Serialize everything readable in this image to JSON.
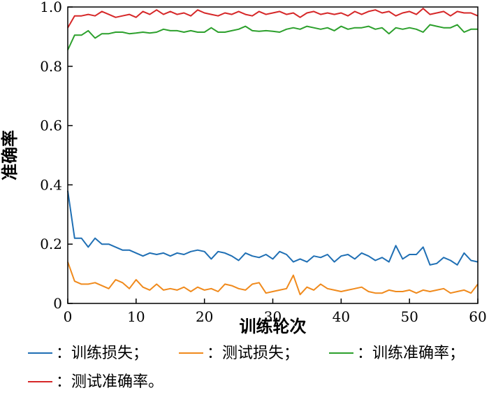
{
  "chart_data": {
    "type": "line",
    "xlabel": "训练轮次",
    "ylabel": "准确率",
    "xlim": [
      0,
      60
    ],
    "ylim": [
      0,
      1.0
    ],
    "xticks": [
      "0",
      "10",
      "20",
      "30",
      "40",
      "50",
      "60"
    ],
    "yticks": [
      "0",
      "0.2",
      "0.4",
      "0.6",
      "0.8",
      "1.0"
    ],
    "grid": false,
    "legend_position": "bottom",
    "x": [
      0,
      1,
      2,
      3,
      4,
      5,
      6,
      7,
      8,
      9,
      10,
      11,
      12,
      13,
      14,
      15,
      16,
      17,
      18,
      19,
      20,
      21,
      22,
      23,
      24,
      25,
      26,
      27,
      28,
      29,
      30,
      31,
      32,
      33,
      34,
      35,
      36,
      37,
      38,
      39,
      40,
      41,
      42,
      43,
      44,
      45,
      46,
      47,
      48,
      49,
      50,
      51,
      52,
      53,
      54,
      55,
      56,
      57,
      58,
      59,
      60
    ],
    "series": [
      {
        "name": "：训练损失；",
        "color": "#1f6fb4",
        "values": [
          0.38,
          0.22,
          0.22,
          0.19,
          0.22,
          0.2,
          0.2,
          0.19,
          0.18,
          0.18,
          0.17,
          0.16,
          0.17,
          0.165,
          0.17,
          0.16,
          0.17,
          0.165,
          0.175,
          0.18,
          0.175,
          0.15,
          0.175,
          0.17,
          0.16,
          0.145,
          0.17,
          0.16,
          0.155,
          0.165,
          0.15,
          0.175,
          0.165,
          0.14,
          0.15,
          0.14,
          0.16,
          0.155,
          0.165,
          0.14,
          0.16,
          0.165,
          0.15,
          0.17,
          0.16,
          0.145,
          0.155,
          0.14,
          0.195,
          0.15,
          0.165,
          0.165,
          0.19,
          0.13,
          0.135,
          0.155,
          0.145,
          0.13,
          0.17,
          0.145,
          0.14
        ]
      },
      {
        "name": "：测试损失；",
        "color": "#f08a1c",
        "values": [
          0.14,
          0.075,
          0.065,
          0.065,
          0.07,
          0.06,
          0.05,
          0.08,
          0.07,
          0.05,
          0.08,
          0.055,
          0.045,
          0.065,
          0.045,
          0.05,
          0.045,
          0.055,
          0.04,
          0.055,
          0.045,
          0.05,
          0.04,
          0.065,
          0.06,
          0.05,
          0.045,
          0.065,
          0.07,
          0.035,
          0.04,
          0.045,
          0.05,
          0.095,
          0.03,
          0.055,
          0.045,
          0.065,
          0.05,
          0.045,
          0.04,
          0.045,
          0.05,
          0.055,
          0.04,
          0.035,
          0.035,
          0.045,
          0.04,
          0.04,
          0.045,
          0.035,
          0.045,
          0.04,
          0.045,
          0.05,
          0.035,
          0.04,
          0.045,
          0.035,
          0.065
        ]
      },
      {
        "name": "：训练准确率；",
        "color": "#2ca02c",
        "values": [
          0.855,
          0.905,
          0.905,
          0.92,
          0.895,
          0.91,
          0.91,
          0.915,
          0.915,
          0.91,
          0.912,
          0.915,
          0.912,
          0.915,
          0.925,
          0.92,
          0.92,
          0.915,
          0.92,
          0.915,
          0.915,
          0.93,
          0.915,
          0.915,
          0.92,
          0.925,
          0.935,
          0.92,
          0.918,
          0.92,
          0.918,
          0.915,
          0.925,
          0.93,
          0.925,
          0.935,
          0.93,
          0.925,
          0.93,
          0.92,
          0.935,
          0.925,
          0.93,
          0.93,
          0.935,
          0.925,
          0.93,
          0.91,
          0.93,
          0.925,
          0.93,
          0.925,
          0.915,
          0.94,
          0.935,
          0.93,
          0.93,
          0.94,
          0.915,
          0.925,
          0.925
        ]
      },
      {
        "name": "：测试准确率。",
        "color": "#d62728",
        "values": [
          0.93,
          0.97,
          0.97,
          0.975,
          0.97,
          0.985,
          0.975,
          0.965,
          0.97,
          0.975,
          0.965,
          0.985,
          0.975,
          0.99,
          0.975,
          0.985,
          0.975,
          0.98,
          0.97,
          0.99,
          0.98,
          0.975,
          0.97,
          0.98,
          0.975,
          0.985,
          0.975,
          0.97,
          0.985,
          0.975,
          0.98,
          0.985,
          0.975,
          0.98,
          0.965,
          0.98,
          0.985,
          0.975,
          0.98,
          0.975,
          0.98,
          0.97,
          0.985,
          0.975,
          0.985,
          0.99,
          0.98,
          0.985,
          0.97,
          0.98,
          0.985,
          0.975,
          0.995,
          0.975,
          0.98,
          0.985,
          0.97,
          0.985,
          0.98,
          0.98,
          0.97
        ]
      }
    ]
  }
}
